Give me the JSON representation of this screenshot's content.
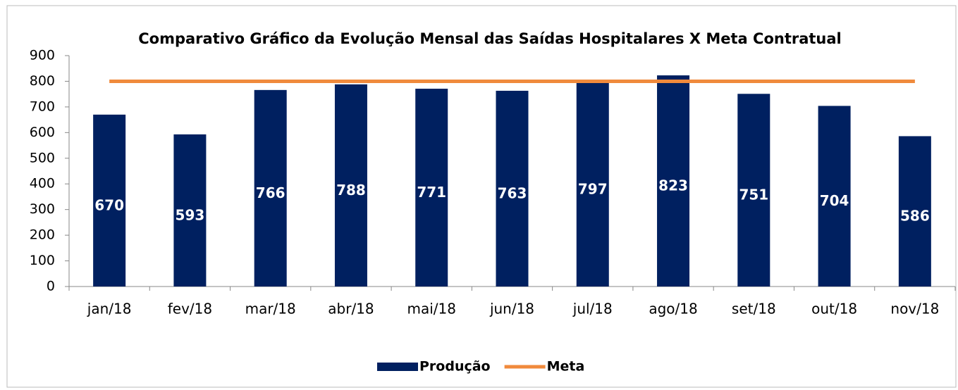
{
  "chart_data": {
    "type": "bar",
    "title": "Comparativo Gráfico da Evolução Mensal das Saídas Hospitalares X Meta Contratual",
    "categories": [
      "jan/18",
      "fev/18",
      "mar/18",
      "abr/18",
      "mai/18",
      "jun/18",
      "jul/18",
      "ago/18",
      "set/18",
      "out/18",
      "nov/18"
    ],
    "series": [
      {
        "name": "Produção",
        "type": "bar",
        "color": "#002060",
        "values": [
          670,
          593,
          766,
          788,
          771,
          763,
          797,
          823,
          751,
          704,
          586
        ]
      },
      {
        "name": "Meta",
        "type": "line",
        "color": "#f08a3c",
        "values": [
          800,
          800,
          800,
          800,
          800,
          800,
          800,
          800,
          800,
          800,
          800
        ]
      }
    ],
    "ylim": [
      0,
      900
    ],
    "yticks": [
      0,
      100,
      200,
      300,
      400,
      500,
      600,
      700,
      800,
      900
    ],
    "legend": "bottom"
  }
}
